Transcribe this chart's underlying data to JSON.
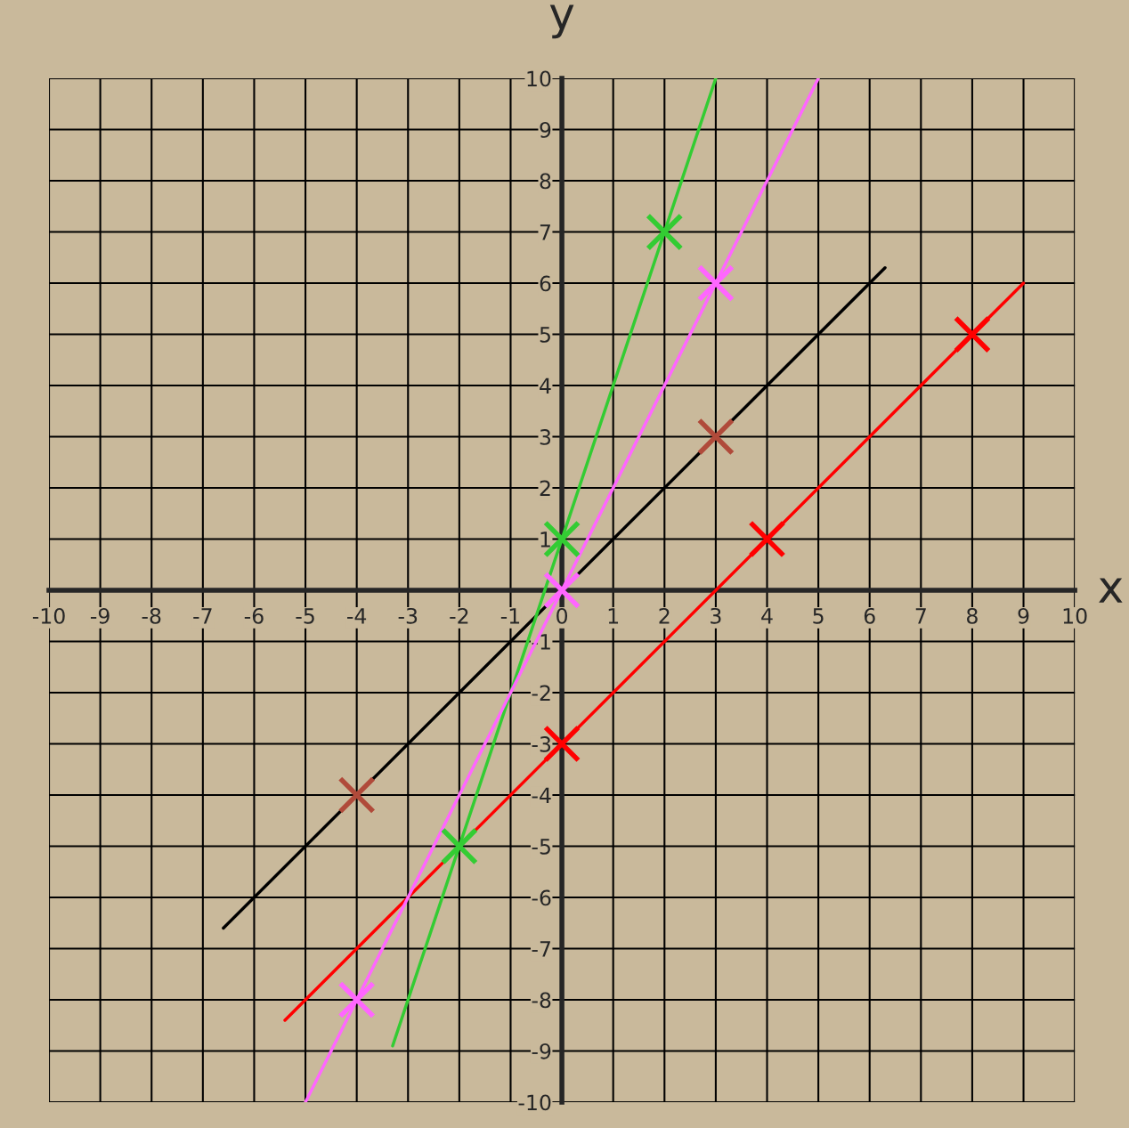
{
  "chart_data": {
    "type": "line",
    "xlabel": "x",
    "ylabel": "y",
    "xlim": [
      -10,
      10
    ],
    "ylim": [
      -10,
      10
    ],
    "xticks": [
      -10,
      -9,
      -8,
      -7,
      -6,
      -5,
      -4,
      -3,
      -2,
      -1,
      0,
      1,
      2,
      3,
      4,
      5,
      6,
      7,
      8,
      9,
      10
    ],
    "yticks": [
      -10,
      -9,
      -8,
      -7,
      -6,
      -5,
      -4,
      -3,
      -2,
      -1,
      1,
      2,
      3,
      4,
      5,
      6,
      7,
      8,
      9,
      10
    ],
    "grid": true,
    "legend": false,
    "series": [
      {
        "type": "line",
        "color": "#000000",
        "x": [
          -6.6,
          6.3
        ],
        "values": [
          -6.6,
          6.3
        ]
      },
      {
        "type": "line",
        "color": "#ff0000",
        "x": [
          -5.4,
          9.0
        ],
        "values": [
          -8.4,
          6.0
        ]
      },
      {
        "type": "line",
        "color": "#33cc33",
        "x": [
          -3.3,
          3.0
        ],
        "values": [
          -8.9,
          10.0
        ]
      },
      {
        "type": "line",
        "color": "#ff66ff",
        "x": [
          -5.0,
          5.0
        ],
        "values": [
          -10.0,
          10.0
        ]
      },
      {
        "type": "scatter",
        "marker": "cross",
        "color": "#b04a3a",
        "x": [
          -4,
          3
        ],
        "values": [
          -4,
          3
        ]
      },
      {
        "type": "scatter",
        "marker": "cross",
        "color": "#ff0000",
        "x": [
          0,
          4,
          8
        ],
        "values": [
          -3,
          1,
          5
        ]
      },
      {
        "type": "scatter",
        "marker": "cross",
        "color": "#33cc33",
        "x": [
          -2,
          0,
          2
        ],
        "values": [
          -5,
          1,
          7
        ]
      },
      {
        "type": "scatter",
        "marker": "cross",
        "color": "#ff66ff",
        "x": [
          -4,
          0,
          3
        ],
        "values": [
          -8,
          0,
          6
        ]
      }
    ]
  }
}
